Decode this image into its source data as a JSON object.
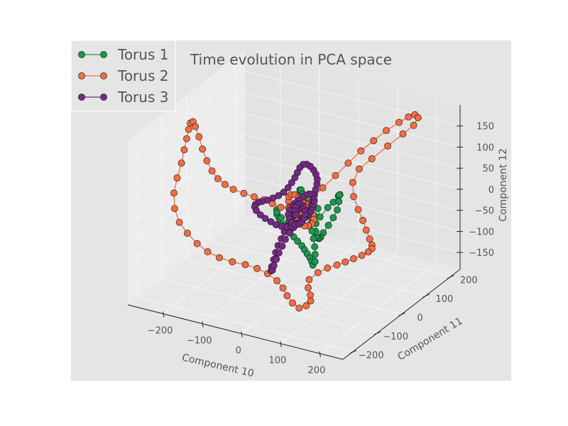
{
  "chart_data": {
    "type": "scatter",
    "projection": "3d",
    "title": "Time evolution in PCA space",
    "xlabel": "Component 10",
    "ylabel": "Component 11",
    "zlabel": "Component 12",
    "xlim": [
      -290,
      260
    ],
    "ylim": [
      -240,
      240
    ],
    "zlim": [
      -190,
      200
    ],
    "xticks": [
      -200,
      -100,
      0,
      100,
      200
    ],
    "yticks": [
      -200,
      -100,
      0,
      100,
      200
    ],
    "zticks": [
      -150,
      -100,
      -50,
      0,
      50,
      100,
      150
    ],
    "grid": true,
    "legend_position": "top-left",
    "background": "#e5e5e5",
    "series": [
      {
        "name": "Torus 1",
        "color": "#1a9850",
        "points": [
          [
            0,
            0,
            0
          ],
          [
            15,
            -10,
            10
          ],
          [
            28,
            5,
            20
          ],
          [
            40,
            10,
            5
          ],
          [
            55,
            -5,
            -5
          ],
          [
            62,
            15,
            10
          ],
          [
            70,
            25,
            20
          ],
          [
            80,
            30,
            35
          ],
          [
            90,
            20,
            45
          ],
          [
            95,
            10,
            50
          ],
          [
            100,
            0,
            40
          ],
          [
            102,
            -10,
            25
          ],
          [
            98,
            -20,
            10
          ],
          [
            92,
            -30,
            -5
          ],
          [
            85,
            -40,
            -20
          ],
          [
            75,
            -35,
            -35
          ],
          [
            65,
            -25,
            -45
          ],
          [
            55,
            -15,
            -50
          ],
          [
            45,
            -5,
            -55
          ],
          [
            38,
            5,
            -48
          ],
          [
            32,
            15,
            -35
          ],
          [
            25,
            20,
            -20
          ],
          [
            18,
            15,
            -10
          ],
          [
            10,
            8,
            -15
          ],
          [
            4,
            0,
            -25
          ],
          [
            -5,
            -5,
            -30
          ],
          [
            -15,
            -10,
            -40
          ],
          [
            -25,
            -15,
            -45
          ],
          [
            -35,
            -20,
            -38
          ],
          [
            -45,
            -12,
            -30
          ],
          [
            -55,
            -5,
            -25
          ],
          [
            -62,
            5,
            -20
          ],
          [
            -66,
            12,
            -30
          ],
          [
            -60,
            20,
            -45
          ],
          [
            -50,
            25,
            -60
          ],
          [
            -38,
            20,
            -72
          ],
          [
            -25,
            15,
            -80
          ],
          [
            -12,
            10,
            -85
          ],
          [
            2,
            5,
            -90
          ],
          [
            12,
            0,
            -95
          ],
          [
            22,
            -5,
            -100
          ],
          [
            32,
            -10,
            -105
          ],
          [
            40,
            -15,
            -110
          ],
          [
            46,
            -20,
            -115
          ],
          [
            48,
            -15,
            -108
          ],
          [
            44,
            -8,
            -95
          ],
          [
            38,
            0,
            -82
          ],
          [
            30,
            8,
            -68
          ],
          [
            22,
            15,
            -55
          ],
          [
            15,
            22,
            -42
          ],
          [
            8,
            28,
            -30
          ],
          [
            2,
            32,
            -15
          ],
          [
            -4,
            30,
            0
          ],
          [
            -8,
            25,
            15
          ],
          [
            -10,
            18,
            28
          ],
          [
            -6,
            10,
            38
          ],
          [
            0,
            5,
            42
          ],
          [
            8,
            0,
            36
          ],
          [
            14,
            -6,
            24
          ],
          [
            18,
            -10,
            12
          ]
        ]
      },
      {
        "name": "Torus 2",
        "color": "#f46d43",
        "points": [
          [
            0,
            0,
            0
          ],
          [
            20,
            15,
            20
          ],
          [
            40,
            30,
            45
          ],
          [
            60,
            50,
            70
          ],
          [
            80,
            70,
            95
          ],
          [
            100,
            90,
            120
          ],
          [
            120,
            110,
            140
          ],
          [
            140,
            130,
            160
          ],
          [
            160,
            150,
            175
          ],
          [
            175,
            165,
            185
          ],
          [
            185,
            175,
            188
          ],
          [
            190,
            180,
            180
          ],
          [
            185,
            170,
            165
          ],
          [
            170,
            150,
            150
          ],
          [
            150,
            120,
            130
          ],
          [
            125,
            95,
            105
          ],
          [
            105,
            75,
            85
          ],
          [
            95,
            65,
            55
          ],
          [
            100,
            60,
            25
          ],
          [
            115,
            55,
            0
          ],
          [
            130,
            50,
            -20
          ],
          [
            145,
            40,
            -35
          ],
          [
            160,
            30,
            -48
          ],
          [
            172,
            20,
            -55
          ],
          [
            178,
            10,
            -58
          ],
          [
            175,
            0,
            -62
          ],
          [
            165,
            -10,
            -68
          ],
          [
            150,
            -20,
            -75
          ],
          [
            135,
            -30,
            -82
          ],
          [
            120,
            -40,
            -88
          ],
          [
            105,
            -55,
            -92
          ],
          [
            90,
            -70,
            -100
          ],
          [
            80,
            -90,
            -110
          ],
          [
            90,
            -110,
            -118
          ],
          [
            105,
            -125,
            -125
          ],
          [
            115,
            -140,
            -130
          ],
          [
            110,
            -150,
            -138
          ],
          [
            95,
            -155,
            -145
          ],
          [
            75,
            -150,
            -140
          ],
          [
            55,
            -140,
            -132
          ],
          [
            35,
            -125,
            -125
          ],
          [
            10,
            -110,
            -120
          ],
          [
            -20,
            -100,
            -115
          ],
          [
            -50,
            -95,
            -112
          ],
          [
            -80,
            -95,
            -110
          ],
          [
            -110,
            -100,
            -108
          ],
          [
            -140,
            -105,
            -103
          ],
          [
            -170,
            -105,
            -96
          ],
          [
            -200,
            -100,
            -86
          ],
          [
            -230,
            -92,
            -72
          ],
          [
            -255,
            -85,
            -55
          ],
          [
            -270,
            -80,
            -28
          ],
          [
            -275,
            -75,
            5
          ],
          [
            -270,
            -70,
            40
          ],
          [
            -262,
            -65,
            75
          ],
          [
            -258,
            -60,
            105
          ],
          [
            -255,
            -55,
            130
          ],
          [
            -253,
            -50,
            150
          ],
          [
            -250,
            -48,
            165
          ],
          [
            -245,
            -45,
            168
          ],
          [
            -242,
            -40,
            155
          ],
          [
            -236,
            -35,
            130
          ],
          [
            -230,
            -30,
            100
          ],
          [
            -222,
            -25,
            72
          ],
          [
            -212,
            -20,
            48
          ],
          [
            -200,
            -15,
            30
          ],
          [
            -185,
            -10,
            18
          ],
          [
            -165,
            -8,
            10
          ],
          [
            -140,
            -5,
            5
          ],
          [
            -115,
            -3,
            2
          ],
          [
            -90,
            -2,
            0
          ],
          [
            -70,
            0,
            -5
          ],
          [
            -50,
            2,
            -10
          ],
          [
            -32,
            5,
            -8
          ],
          [
            -18,
            8,
            -2
          ],
          [
            -5,
            5,
            5
          ],
          [
            8,
            2,
            12
          ],
          [
            20,
            -2,
            15
          ],
          [
            30,
            -5,
            8
          ],
          [
            38,
            -8,
            -2
          ],
          [
            42,
            -10,
            -12
          ],
          [
            38,
            -12,
            -22
          ],
          [
            28,
            -10,
            -30
          ],
          [
            16,
            -6,
            -35
          ],
          [
            4,
            -2,
            -32
          ],
          [
            -8,
            2,
            -26
          ],
          [
            -20,
            6,
            -18
          ],
          [
            -30,
            10,
            -8
          ],
          [
            -36,
            12,
            4
          ],
          [
            -34,
            10,
            16
          ],
          [
            -26,
            6,
            24
          ],
          [
            -14,
            2,
            28
          ],
          [
            -2,
            -2,
            26
          ],
          [
            10,
            -6,
            20
          ],
          [
            20,
            -8,
            12
          ],
          [
            26,
            -6,
            2
          ],
          [
            24,
            -2,
            -8
          ],
          [
            16,
            2,
            -14
          ],
          [
            6,
            4,
            -16
          ],
          [
            -4,
            4,
            -12
          ]
        ]
      },
      {
        "name": "Torus 3",
        "color": "#762a83",
        "points": [
          [
            0,
            0,
            0
          ],
          [
            -10,
            10,
            -10
          ],
          [
            -20,
            20,
            -20
          ],
          [
            -30,
            25,
            -35
          ],
          [
            -40,
            30,
            -50
          ],
          [
            -48,
            28,
            -65
          ],
          [
            -55,
            25,
            -80
          ],
          [
            -60,
            20,
            -95
          ],
          [
            -65,
            15,
            -110
          ],
          [
            -68,
            10,
            -125
          ],
          [
            -70,
            5,
            -140
          ],
          [
            -72,
            0,
            -155
          ],
          [
            -70,
            -5,
            -162
          ],
          [
            -65,
            -8,
            -158
          ],
          [
            -60,
            -10,
            -145
          ],
          [
            -55,
            -8,
            -130
          ],
          [
            -50,
            -5,
            -115
          ],
          [
            -45,
            0,
            -100
          ],
          [
            -40,
            5,
            -85
          ],
          [
            -32,
            10,
            -70
          ],
          [
            -25,
            15,
            -58
          ],
          [
            -18,
            20,
            -48
          ],
          [
            -10,
            25,
            -38
          ],
          [
            -2,
            28,
            -28
          ],
          [
            5,
            30,
            -18
          ],
          [
            10,
            32,
            -5
          ],
          [
            15,
            30,
            10
          ],
          [
            20,
            28,
            25
          ],
          [
            25,
            25,
            40
          ],
          [
            30,
            22,
            55
          ],
          [
            32,
            20,
            68
          ],
          [
            30,
            18,
            80
          ],
          [
            25,
            16,
            90
          ],
          [
            18,
            14,
            98
          ],
          [
            10,
            12,
            102
          ],
          [
            2,
            10,
            100
          ],
          [
            -5,
            8,
            92
          ],
          [
            -10,
            6,
            80
          ],
          [
            -15,
            4,
            68
          ],
          [
            -22,
            2,
            55
          ],
          [
            -30,
            0,
            42
          ],
          [
            -40,
            -2,
            30
          ],
          [
            -52,
            -4,
            20
          ],
          [
            -65,
            -6,
            12
          ],
          [
            -78,
            -8,
            5
          ],
          [
            -90,
            -10,
            0
          ],
          [
            -100,
            -10,
            -5
          ],
          [
            -108,
            -8,
            -12
          ],
          [
            -112,
            -5,
            -20
          ],
          [
            -110,
            -2,
            -30
          ],
          [
            -102,
            2,
            -40
          ],
          [
            -92,
            6,
            -48
          ],
          [
            -80,
            10,
            -55
          ],
          [
            -68,
            12,
            -60
          ],
          [
            -55,
            14,
            -62
          ],
          [
            -42,
            15,
            -60
          ],
          [
            -30,
            14,
            -55
          ],
          [
            -18,
            12,
            -48
          ],
          [
            -8,
            10,
            -40
          ],
          [
            2,
            8,
            -30
          ],
          [
            12,
            5,
            -20
          ],
          [
            20,
            2,
            -10
          ],
          [
            28,
            0,
            0
          ],
          [
            34,
            -2,
            10
          ],
          [
            38,
            -4,
            20
          ],
          [
            40,
            -5,
            30
          ],
          [
            38,
            -4,
            38
          ],
          [
            32,
            -2,
            42
          ],
          [
            24,
            0,
            40
          ],
          [
            14,
            2,
            34
          ],
          [
            4,
            4,
            26
          ],
          [
            -6,
            6,
            16
          ],
          [
            -16,
            8,
            6
          ],
          [
            -24,
            8,
            -4
          ],
          [
            -30,
            6,
            -14
          ],
          [
            -32,
            4,
            -24
          ],
          [
            -28,
            2,
            -32
          ],
          [
            -20,
            0,
            -38
          ],
          [
            -10,
            -2,
            -40
          ],
          [
            0,
            -3,
            -36
          ],
          [
            8,
            -4,
            -28
          ],
          [
            14,
            -4,
            -18
          ],
          [
            16,
            -3,
            -8
          ],
          [
            14,
            -2,
            2
          ],
          [
            8,
            0,
            8
          ],
          [
            0,
            2,
            10
          ],
          [
            -8,
            4,
            6
          ],
          [
            -14,
            5,
            -2
          ],
          [
            -16,
            5,
            -12
          ],
          [
            -12,
            4,
            -20
          ]
        ]
      }
    ]
  }
}
